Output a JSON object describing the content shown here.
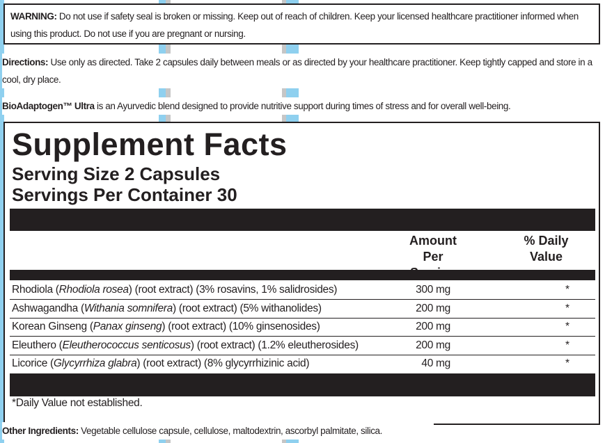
{
  "background": {
    "stripe_colors": [
      "#8fd0ef",
      "#c6c6c6"
    ]
  },
  "warning": {
    "label": "WARNING:",
    "text": " Do not use if safety seal is broken or missing. Keep out of reach of children. Keep your licensed healthcare practitioner informed when using this product. Do not use if you are pregnant or nursing."
  },
  "directions": {
    "label": "Directions:",
    "text": " Use only as directed. Take 2 capsules daily between meals or as directed by your healthcare practitioner. Keep tightly capped and store in a cool, dry place."
  },
  "description": {
    "product": "BioAdaptogen™ Ultra",
    "text": " is an Ayurvedic blend designed to provide nutritive support during times of stress and for overall well-being."
  },
  "facts": {
    "title": "Supplement Facts",
    "serving_size": "Serving Size 2 Capsules",
    "servings_per_container": "Servings Per Container 30",
    "col_amount": "Amount Per Serving",
    "col_dv": "% Daily Value",
    "rows": [
      {
        "name": "Rhodiola (",
        "latin": "Rhodiola rosea",
        "rest": ") (root extract) (3% rosavins, 1% salidrosides)",
        "amount": "300 mg",
        "dv": "*"
      },
      {
        "name": "Ashwagandha (",
        "latin": "Withania somnifera",
        "rest": ") (root extract) (5% withanolides)",
        "amount": "200 mg",
        "dv": "*"
      },
      {
        "name": "Korean Ginseng (",
        "latin": "Panax ginseng",
        "rest": ") (root extract) (10% ginsenosides)",
        "amount": "200 mg",
        "dv": "*"
      },
      {
        "name": "Eleuthero (",
        "latin": "Eleutherococcus senticosus",
        "rest": ") (root extract) (1.2% eleutherosides)",
        "amount": "200 mg",
        "dv": "*"
      },
      {
        "name": "Licorice (",
        "latin": "Glycyrrhiza glabra",
        "rest": ") (root extract) (8% glycyrrhizinic acid)",
        "amount": "40 mg",
        "dv": "*"
      }
    ],
    "footnote": "*Daily Value not established."
  },
  "other_ingredients": {
    "label": "Other Ingredients:",
    "text": " Vegetable cellulose capsule, cellulose, maltodextrin, ascorbyl palmitate, silica."
  }
}
